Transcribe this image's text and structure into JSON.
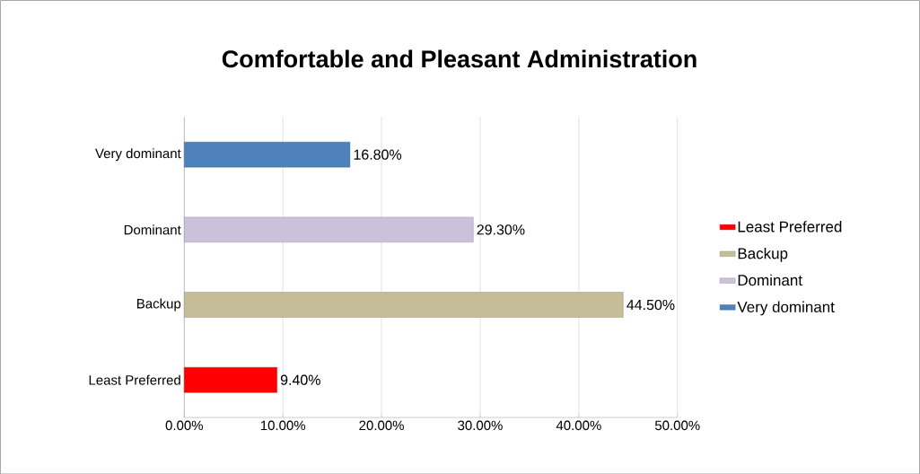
{
  "chart_data": {
    "type": "bar",
    "orientation": "horizontal",
    "title": "Comfortable and Pleasant Administration",
    "categories": [
      "Very dominant",
      "Dominant",
      "Backup",
      "Least Preferred"
    ],
    "series": [
      {
        "name": "Least Preferred",
        "color": "#ff0000",
        "values": [
          null,
          null,
          null,
          9.4
        ],
        "value_labels": [
          null,
          null,
          null,
          "9.40%"
        ]
      },
      {
        "name": "Backup",
        "color": "#c4bd97",
        "values": [
          null,
          null,
          44.5,
          null
        ],
        "value_labels": [
          null,
          null,
          "44.50%",
          null
        ]
      },
      {
        "name": "Dominant",
        "color": "#ccc0da",
        "values": [
          null,
          29.3,
          null,
          null
        ],
        "value_labels": [
          null,
          "29.30%",
          null,
          null
        ]
      },
      {
        "name": "Very dominant",
        "color": "#4f81bd",
        "values": [
          16.8,
          null,
          null,
          null
        ],
        "value_labels": [
          "16.80%",
          null,
          null,
          null
        ]
      }
    ],
    "xlim": [
      0,
      50
    ],
    "xticks": [
      {
        "value": 0,
        "label": "0.00%"
      },
      {
        "value": 10,
        "label": "10.00%"
      },
      {
        "value": 20,
        "label": "20.00%"
      },
      {
        "value": 30,
        "label": "30.00%"
      },
      {
        "value": 40,
        "label": "40.00%"
      },
      {
        "value": 50,
        "label": "50.00%"
      }
    ],
    "grid": "x",
    "legend": "right"
  }
}
